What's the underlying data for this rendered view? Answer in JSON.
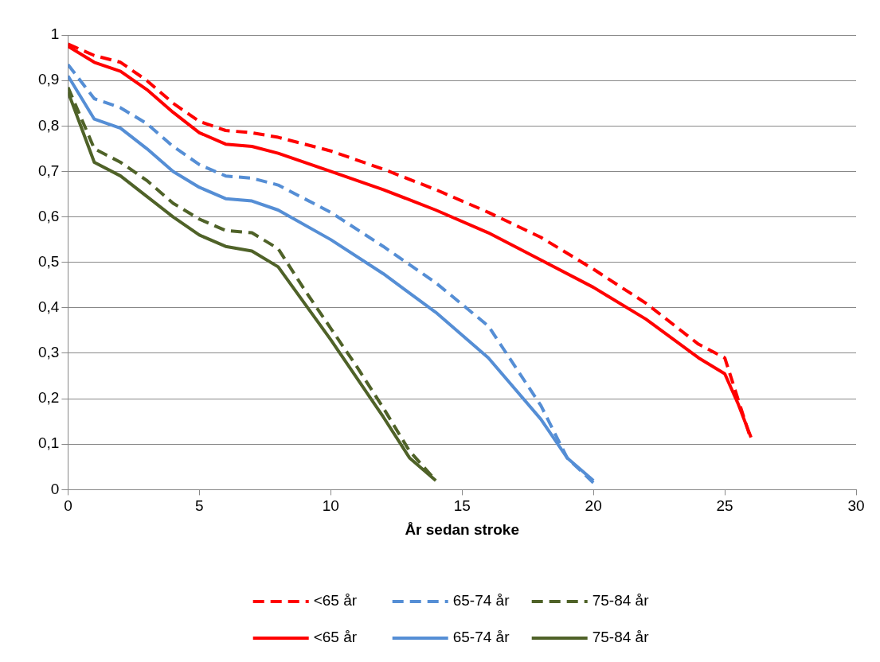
{
  "chart_data": {
    "type": "line",
    "xlabel": "År sedan stroke",
    "xlim": [
      0,
      30
    ],
    "xticks": [
      0,
      5,
      10,
      15,
      20,
      25,
      30
    ],
    "ylim": [
      0,
      1
    ],
    "yticks": [
      0,
      {
        "value": 0.1,
        "label": "0,1"
      },
      {
        "value": 0.2,
        "label": "0,2"
      },
      {
        "value": 0.3,
        "label": "0,3"
      },
      {
        "value": 0.4,
        "label": "0,4"
      },
      {
        "value": 0.5,
        "label": "0,5"
      },
      {
        "value": 0.6,
        "label": "0,6"
      },
      {
        "value": 0.7,
        "label": "0,7"
      },
      {
        "value": 0.8,
        "label": "0,8"
      },
      {
        "value": 0.9,
        "label": "0,9"
      },
      1
    ],
    "grid": "y",
    "legend": "bottom",
    "marker": "none",
    "series": [
      {
        "name": "<65 år",
        "color": "#ff0000",
        "line_style": "dashed",
        "x": [
          0,
          1,
          2,
          3,
          4,
          5,
          6,
          7,
          8,
          10,
          12,
          14,
          16,
          18,
          20,
          22,
          24,
          25,
          25.5,
          26
        ],
        "values": [
          0.98,
          0.955,
          0.94,
          0.9,
          0.85,
          0.81,
          0.79,
          0.785,
          0.775,
          0.745,
          0.705,
          0.66,
          0.61,
          0.555,
          0.485,
          0.41,
          0.32,
          0.29,
          0.2,
          0.11
        ]
      },
      {
        "name": "65-74 år",
        "color": "#558ed5",
        "line_style": "dashed",
        "x": [
          0,
          1,
          2,
          3,
          4,
          5,
          6,
          7,
          8,
          10,
          12,
          14,
          16,
          18,
          19,
          20
        ],
        "values": [
          0.935,
          0.86,
          0.84,
          0.805,
          0.755,
          0.715,
          0.69,
          0.685,
          0.67,
          0.61,
          0.535,
          0.455,
          0.36,
          0.185,
          0.07,
          0.015
        ]
      },
      {
        "name": "75-84 år",
        "color": "#4f6228",
        "line_style": "dashed",
        "x": [
          0,
          1,
          2,
          3,
          4,
          5,
          6,
          7,
          8,
          9,
          10,
          11,
          12,
          13,
          14
        ],
        "values": [
          0.885,
          0.75,
          0.72,
          0.68,
          0.63,
          0.595,
          0.57,
          0.565,
          0.53,
          0.44,
          0.355,
          0.27,
          0.18,
          0.085,
          0.02
        ]
      },
      {
        "name": "<65 år",
        "color": "#ff0000",
        "line_style": "solid",
        "x": [
          0,
          1,
          2,
          3,
          4,
          5,
          6,
          7,
          8,
          10,
          12,
          14,
          16,
          18,
          20,
          22,
          24,
          25,
          25.5,
          26
        ],
        "values": [
          0.975,
          0.94,
          0.92,
          0.88,
          0.83,
          0.785,
          0.76,
          0.755,
          0.74,
          0.7,
          0.66,
          0.615,
          0.565,
          0.505,
          0.445,
          0.375,
          0.29,
          0.255,
          0.19,
          0.115
        ]
      },
      {
        "name": "65-74 år",
        "color": "#558ed5",
        "line_style": "solid",
        "x": [
          0,
          1,
          2,
          3,
          4,
          5,
          6,
          7,
          8,
          10,
          12,
          14,
          16,
          18,
          19,
          20
        ],
        "values": [
          0.91,
          0.815,
          0.795,
          0.75,
          0.7,
          0.665,
          0.64,
          0.635,
          0.615,
          0.55,
          0.475,
          0.39,
          0.29,
          0.155,
          0.07,
          0.02
        ]
      },
      {
        "name": "75-84 år",
        "color": "#4f6228",
        "line_style": "solid",
        "x": [
          0,
          1,
          2,
          3,
          4,
          5,
          6,
          7,
          8,
          9,
          10,
          11,
          12,
          13,
          14
        ],
        "values": [
          0.875,
          0.72,
          0.69,
          0.645,
          0.6,
          0.56,
          0.535,
          0.525,
          0.49,
          0.41,
          0.33,
          0.245,
          0.16,
          0.07,
          0.02
        ]
      }
    ]
  }
}
